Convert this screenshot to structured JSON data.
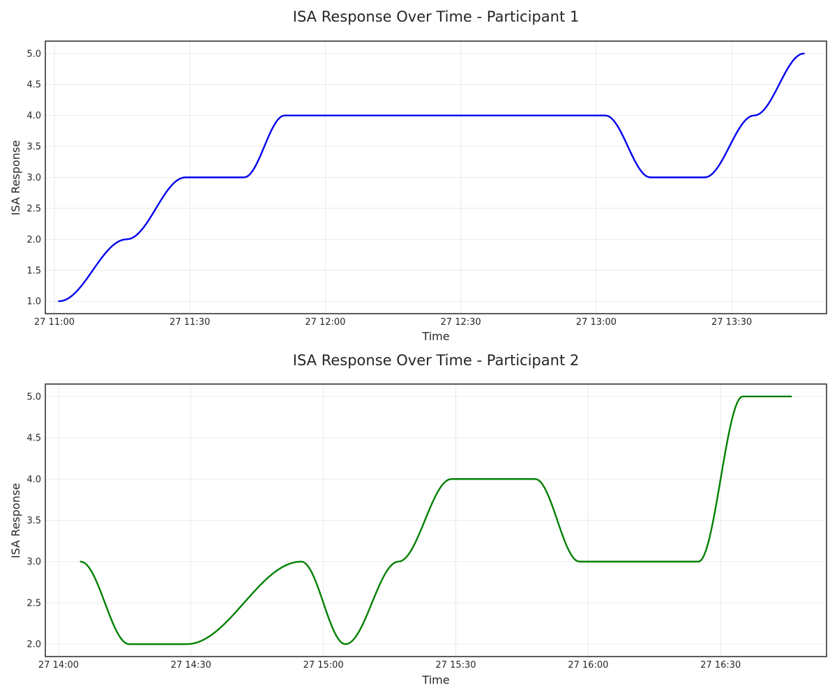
{
  "chart_data": [
    {
      "type": "line",
      "title": "ISA Response Over Time - Participant 1",
      "xlabel": "Time",
      "ylabel": "ISA Response",
      "xlim": [
        "2023-06-27T10:58:00",
        "2023-06-27T13:51:00"
      ],
      "ylim": [
        0.8,
        5.2
      ],
      "grid": true,
      "x_ticks": [
        {
          "t": "2023-06-27T11:00:00",
          "label": "27 11:00"
        },
        {
          "t": "2023-06-27T11:30:00",
          "label": "27 11:30"
        },
        {
          "t": "2023-06-27T12:00:00",
          "label": "27 12:00"
        },
        {
          "t": "2023-06-27T12:30:00",
          "label": "27 12:30"
        },
        {
          "t": "2023-06-27T13:00:00",
          "label": "27 13:00"
        },
        {
          "t": "2023-06-27T13:30:00",
          "label": "27 13:30"
        }
      ],
      "y_ticks": [
        1.0,
        1.5,
        2.0,
        2.5,
        3.0,
        3.5,
        4.0,
        4.5,
        5.0
      ],
      "series": [
        {
          "color": "#0000ee",
          "x": [
            "2023-06-27T11:01:00",
            "2023-06-27T11:16:00",
            "2023-06-27T11:29:00",
            "2023-06-27T11:42:00",
            "2023-06-27T11:51:00",
            "2023-06-27T13:02:00",
            "2023-06-27T13:12:00",
            "2023-06-27T13:24:00",
            "2023-06-27T13:35:00",
            "2023-06-27T13:46:00"
          ],
          "values": [
            1.0,
            2.0,
            3.0,
            3.0,
            4.0,
            4.0,
            3.0,
            3.0,
            4.0,
            5.0
          ]
        }
      ]
    },
    {
      "type": "line",
      "title": "ISA Response Over Time - Participant 2",
      "xlabel": "Time",
      "ylabel": "ISA Response",
      "xlim": [
        "2023-06-27T13:57:00",
        "2023-06-27T16:54:00"
      ],
      "ylim": [
        1.85,
        5.15
      ],
      "grid": true,
      "x_ticks": [
        {
          "t": "2023-06-27T14:00:00",
          "label": "27 14:00"
        },
        {
          "t": "2023-06-27T14:30:00",
          "label": "27 14:30"
        },
        {
          "t": "2023-06-27T15:00:00",
          "label": "27 15:00"
        },
        {
          "t": "2023-06-27T15:30:00",
          "label": "27 15:30"
        },
        {
          "t": "2023-06-27T16:00:00",
          "label": "27 16:00"
        },
        {
          "t": "2023-06-27T16:30:00",
          "label": "27 16:30"
        }
      ],
      "y_ticks": [
        2.0,
        2.5,
        3.0,
        3.5,
        4.0,
        4.5,
        5.0
      ],
      "series": [
        {
          "color": "#008000",
          "x": [
            "2023-06-27T14:05:00",
            "2023-06-27T14:16:00",
            "2023-06-27T14:29:00",
            "2023-06-27T14:55:00",
            "2023-06-27T15:05:00",
            "2023-06-27T15:17:00",
            "2023-06-27T15:29:00",
            "2023-06-27T15:48:00",
            "2023-06-27T15:58:00",
            "2023-06-27T16:25:00",
            "2023-06-27T16:35:00",
            "2023-06-27T16:46:00"
          ],
          "values": [
            3.0,
            2.0,
            2.0,
            3.0,
            2.0,
            3.0,
            4.0,
            4.0,
            3.0,
            3.0,
            5.0,
            5.0
          ]
        }
      ]
    }
  ]
}
